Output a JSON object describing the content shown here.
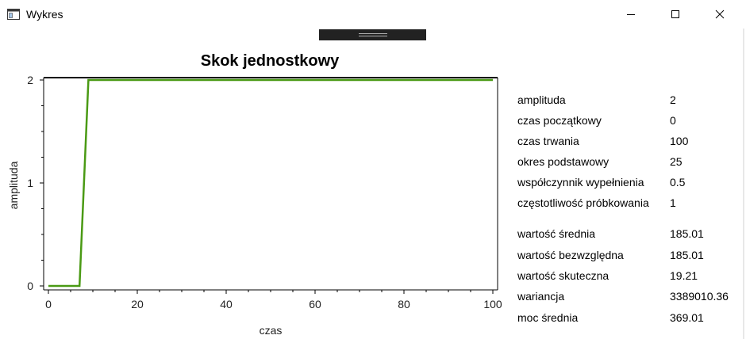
{
  "window": {
    "title": "Wykres"
  },
  "chart_data": {
    "type": "line",
    "title": "Skok jednostkowy",
    "xlabel": "czas",
    "ylabel": "amplituda",
    "xlim": [
      0,
      100
    ],
    "ylim": [
      0,
      2
    ],
    "xticks": [
      0,
      20,
      40,
      60,
      80,
      100
    ],
    "yticks": [
      0,
      1,
      2
    ],
    "grid": false,
    "color": "#4a9a14",
    "series": [
      {
        "x": [
          0,
          7,
          9,
          100
        ],
        "y": [
          0,
          0,
          2,
          2
        ]
      }
    ]
  },
  "params": [
    {
      "label": "amplituda",
      "value": "2"
    },
    {
      "label": "czas początkowy",
      "value": "0"
    },
    {
      "label": "czas trwania",
      "value": "100"
    },
    {
      "label": "okres podstawowy",
      "value": "25"
    },
    {
      "label": "współczynnik wypełnienia",
      "value": "0.5"
    },
    {
      "label": "częstotliwość próbkowania",
      "value": "1"
    }
  ],
  "stats": [
    {
      "label": "wartość średnia",
      "value": "185.01"
    },
    {
      "label": "wartość bezwzględna",
      "value": "185.01"
    },
    {
      "label": "wartość skuteczna",
      "value": "19.21"
    },
    {
      "label": "wariancja",
      "value": "3389010.36"
    },
    {
      "label": "moc średnia",
      "value": "369.01"
    }
  ]
}
